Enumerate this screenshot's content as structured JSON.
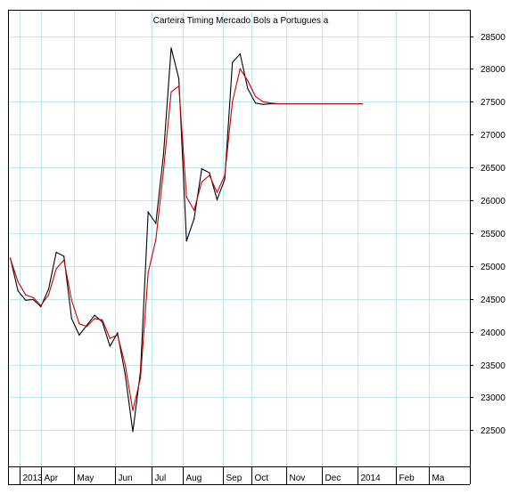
{
  "chart_data": {
    "type": "line",
    "title": "Carteira Timing Mercado Bols a Portugues a",
    "xlabel": "",
    "ylabel": "",
    "x_ticks": [
      "2013",
      "Apr",
      "May",
      "Jun",
      "Jul",
      "Aug",
      "Sep",
      "Oct",
      "Nov",
      "Dec",
      "2014",
      "Feb",
      "Ma"
    ],
    "y_ticks": [
      22500,
      23000,
      23500,
      24000,
      24500,
      25000,
      25500,
      26000,
      26500,
      27000,
      27500,
      28000,
      28500
    ],
    "ylim": [
      21950,
      28900
    ],
    "x_positions": [
      0,
      1,
      2,
      3,
      4,
      5,
      6,
      7,
      8,
      9,
      10,
      11,
      12,
      13,
      14,
      15,
      16,
      17,
      18,
      19,
      20,
      21,
      22,
      23,
      24,
      25,
      26,
      27,
      28,
      29,
      30,
      31,
      32,
      33,
      34,
      35,
      36,
      37,
      38,
      39,
      40,
      41,
      42,
      43,
      44,
      45,
      46
    ],
    "xlim": [
      -0.3,
      60.0
    ],
    "x_tick_positions": [
      1.2,
      4.0,
      8.3,
      13.7,
      18.5,
      22.5,
      27.7,
      31.5,
      36.0,
      40.7,
      45.3,
      50.3,
      54.7
    ],
    "series": [
      {
        "color": "#000000",
        "values": [
          25120,
          24620,
          24480,
          24490,
          24380,
          24650,
          25210,
          25150,
          24200,
          23950,
          24100,
          24250,
          24150,
          23780,
          23980,
          23350,
          22480,
          23400,
          25820,
          25650,
          26700,
          28320,
          27850,
          25380,
          25720,
          26480,
          26420,
          26010,
          26320,
          28100,
          28230,
          27700,
          27480,
          27460,
          27470,
          27470
        ]
      },
      {
        "color": "#cc0000",
        "values": [
          25110,
          24760,
          24560,
          24520,
          24400,
          24560,
          24960,
          25090,
          24480,
          24120,
          24080,
          24200,
          24180,
          23900,
          23950,
          23500,
          22800,
          23300,
          24900,
          25400,
          26450,
          27650,
          27740,
          26050,
          25850,
          26280,
          26380,
          26120,
          26380,
          27500,
          28000,
          27820,
          27580,
          27500,
          27480,
          27470,
          27470,
          27470,
          27470,
          27470,
          27470,
          27470,
          27470,
          27470,
          27470,
          27470,
          27470
        ]
      }
    ],
    "grid": true,
    "legend": "none",
    "background": "#ffffff",
    "grid_color": "#bfe8ee"
  }
}
